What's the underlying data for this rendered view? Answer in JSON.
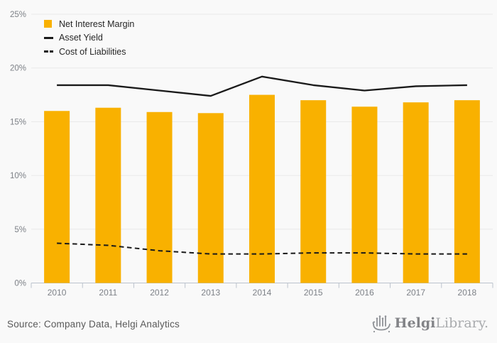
{
  "chart_data": {
    "type": "bar",
    "title": "",
    "categories": [
      "2010",
      "2011",
      "2012",
      "2013",
      "2014",
      "2015",
      "2016",
      "2017",
      "2018"
    ],
    "series": [
      {
        "name": "Net Interest Margin",
        "type": "bar",
        "style": "solid",
        "color": "#F9B100",
        "values": [
          16.0,
          16.3,
          15.9,
          15.8,
          17.5,
          17.0,
          16.4,
          16.8,
          17.0
        ]
      },
      {
        "name": "Asset Yield",
        "type": "line",
        "style": "solid",
        "color": "#1a1a1a",
        "values": [
          18.4,
          18.4,
          17.9,
          17.4,
          19.2,
          18.4,
          17.9,
          18.3,
          18.4
        ]
      },
      {
        "name": "Cost of Liabilities",
        "type": "line",
        "style": "dashed",
        "color": "#1a1a1a",
        "values": [
          3.7,
          3.5,
          3.0,
          2.7,
          2.7,
          2.8,
          2.8,
          2.7,
          2.7
        ]
      }
    ],
    "xlabel": "",
    "ylabel": "",
    "ylim": [
      0,
      25
    ],
    "ytick_step": 5,
    "ytick_labels": [
      "0%",
      "5%",
      "10%",
      "15%",
      "20%",
      "25%"
    ],
    "grid": true,
    "legend_position": "top-left"
  },
  "legend": {
    "items": [
      {
        "label": "Net Interest Margin",
        "swatch": "square"
      },
      {
        "label": "Asset Yield",
        "swatch": "solid-line"
      },
      {
        "label": "Cost of Liabilities",
        "swatch": "dashed-line"
      }
    ]
  },
  "footer": {
    "source_text": "Source: Company Data, Helgi Analytics",
    "logo_bold": "Helgi",
    "logo_light": "Library",
    "logo_period": "."
  },
  "colors": {
    "background": "#f9f9f9",
    "grid": "#e9e9e9",
    "axis": "#bcc3cd",
    "tick_label": "#7d8187",
    "bar": "#F9B100",
    "line": "#1a1a1a",
    "legend_text": "#262626",
    "source_text": "#595959",
    "logo_dark": "#828387",
    "logo_light": "#a9abae"
  }
}
